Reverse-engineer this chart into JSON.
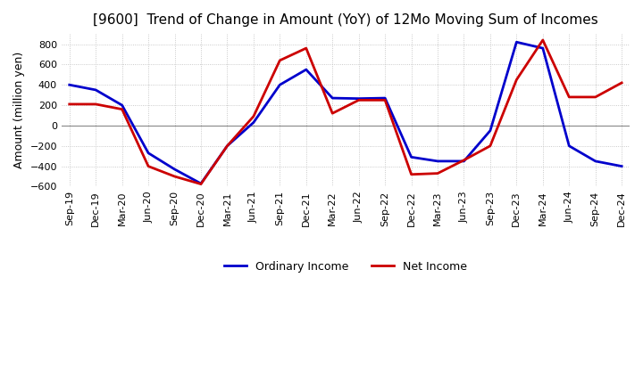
{
  "title": "[9600]  Trend of Change in Amount (YoY) of 12Mo Moving Sum of Incomes",
  "ylabel": "Amount (million yen)",
  "x_labels": [
    "Sep-19",
    "Dec-19",
    "Mar-20",
    "Jun-20",
    "Sep-20",
    "Dec-20",
    "Mar-21",
    "Jun-21",
    "Sep-21",
    "Dec-21",
    "Mar-22",
    "Jun-22",
    "Sep-22",
    "Dec-22",
    "Mar-23",
    "Jun-23",
    "Sep-23",
    "Dec-23",
    "Mar-24",
    "Jun-24",
    "Sep-24",
    "Dec-24"
  ],
  "ordinary_income": [
    400,
    350,
    200,
    -270,
    -430,
    -570,
    -200,
    30,
    400,
    550,
    270,
    265,
    270,
    -310,
    -350,
    -350,
    -50,
    820,
    760,
    -200,
    -350,
    -400
  ],
  "net_income": [
    210,
    210,
    160,
    -400,
    -500,
    -575,
    -200,
    90,
    640,
    760,
    120,
    250,
    250,
    -480,
    -470,
    -340,
    -200,
    450,
    840,
    280,
    280,
    420
  ],
  "ordinary_color": "#0000cc",
  "net_color": "#cc0000",
  "ylim": [
    -600,
    900
  ],
  "yticks": [
    -600,
    -400,
    -200,
    0,
    200,
    400,
    600,
    800
  ],
  "background_color": "#ffffff",
  "grid_color": "#bbbbbb",
  "title_fontsize": 11,
  "axis_fontsize": 9,
  "tick_fontsize": 8,
  "legend_fontsize": 9,
  "line_width": 2.0
}
